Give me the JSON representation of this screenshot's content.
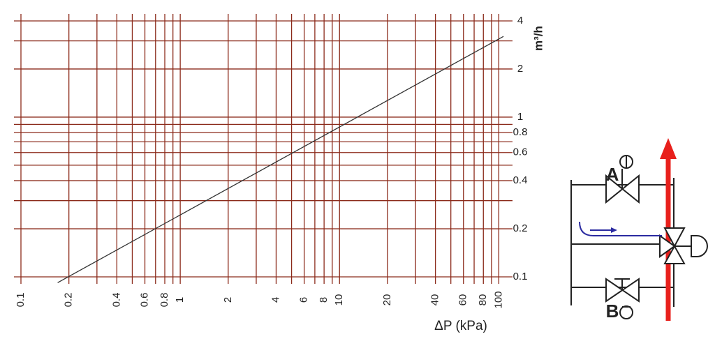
{
  "chart_data": {
    "type": "line",
    "x_label": "ΔP (kPa)",
    "y_label": "m³/h",
    "xlog": true,
    "ylog": true,
    "grid": true,
    "grid_color": "#8b2a1a",
    "xlim": [
      0.1,
      108
    ],
    "ylim": [
      0.1,
      4
    ],
    "xticks": [
      0.1,
      0.2,
      0.4,
      0.6,
      0.8,
      1,
      2,
      4,
      6,
      8,
      10,
      20,
      40,
      60,
      80,
      100
    ],
    "xticks_minor": [
      0.3,
      0.5,
      0.7,
      0.9,
      3,
      5,
      7,
      9,
      30,
      50,
      70,
      90
    ],
    "yticks": [
      0.1,
      0.2,
      0.4,
      0.6,
      0.8,
      1,
      2,
      4
    ],
    "yticks_minor": [
      0.3,
      0.5,
      0.7,
      0.9,
      3
    ],
    "series": [
      {
        "color": "#333333",
        "x": [
          0.17,
          107
        ],
        "values": [
          0.092,
          3.2
        ]
      }
    ]
  },
  "diagram": {
    "labels": [
      "A",
      "B"
    ]
  }
}
